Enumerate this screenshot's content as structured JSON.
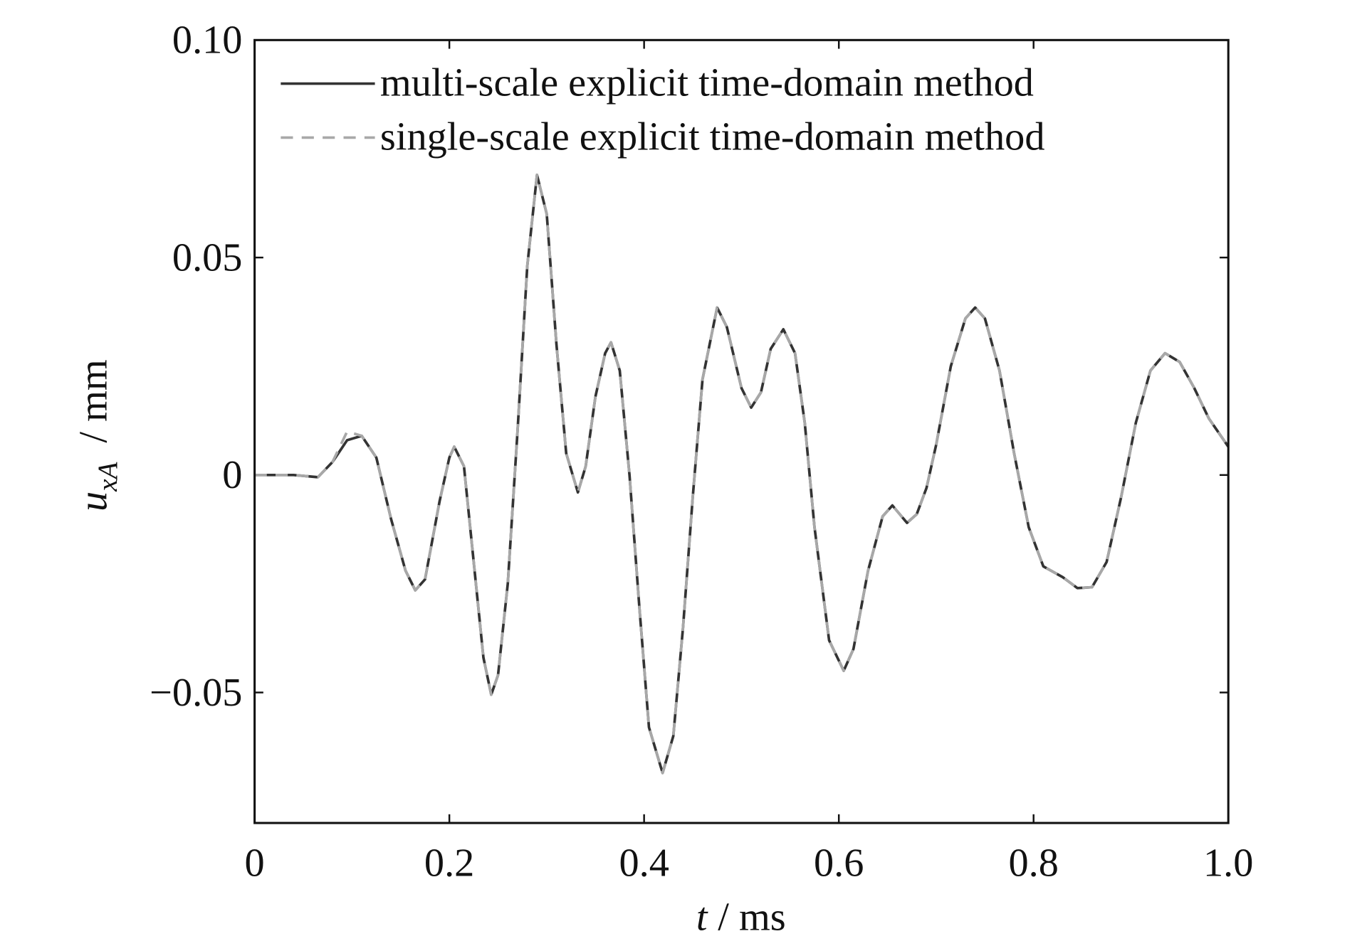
{
  "chart_data": {
    "type": "line",
    "xlabel": {
      "symbol": "t",
      "unit": "/ ms"
    },
    "ylabel": {
      "symbol": "u",
      "subscript": "xA",
      "unit": "/ mm"
    },
    "x": [
      0,
      0.04,
      0.065,
      0.08,
      0.095,
      0.11,
      0.125,
      0.14,
      0.155,
      0.165,
      0.175,
      0.19,
      0.2,
      0.205,
      0.215,
      0.225,
      0.235,
      0.243,
      0.25,
      0.26,
      0.27,
      0.28,
      0.29,
      0.3,
      0.31,
      0.32,
      0.332,
      0.34,
      0.35,
      0.36,
      0.366,
      0.375,
      0.385,
      0.395,
      0.405,
      0.419,
      0.43,
      0.44,
      0.45,
      0.46,
      0.475,
      0.485,
      0.5,
      0.51,
      0.52,
      0.53,
      0.543,
      0.555,
      0.565,
      0.575,
      0.59,
      0.605,
      0.615,
      0.63,
      0.645,
      0.655,
      0.67,
      0.68,
      0.69,
      0.7,
      0.715,
      0.73,
      0.74,
      0.75,
      0.765,
      0.78,
      0.795,
      0.81,
      0.83,
      0.845,
      0.86,
      0.875,
      0.89,
      0.905,
      0.92,
      0.935,
      0.95,
      0.965,
      0.98,
      1.0
    ],
    "series": [
      {
        "name": "multi-scale explicit time-domain method",
        "color": "#333333",
        "dash": false,
        "values": [
          0,
          0,
          -0.0005,
          0.003,
          0.008,
          0.009,
          0.004,
          -0.01,
          -0.022,
          -0.0265,
          -0.024,
          -0.006,
          0.004,
          0.0065,
          0.002,
          -0.02,
          -0.042,
          -0.0505,
          -0.046,
          -0.025,
          0.01,
          0.048,
          0.069,
          0.06,
          0.03,
          0.005,
          -0.004,
          0.002,
          0.018,
          0.028,
          0.0305,
          0.024,
          0.0,
          -0.03,
          -0.058,
          -0.0685,
          -0.06,
          -0.035,
          -0.005,
          0.022,
          0.0385,
          0.034,
          0.02,
          0.0155,
          0.019,
          0.029,
          0.0335,
          0.028,
          0.012,
          -0.012,
          -0.038,
          -0.045,
          -0.04,
          -0.022,
          -0.0095,
          -0.007,
          -0.011,
          -0.009,
          -0.003,
          0.007,
          0.025,
          0.036,
          0.0385,
          0.036,
          0.024,
          0.005,
          -0.012,
          -0.021,
          -0.0235,
          -0.026,
          -0.0258,
          -0.02,
          -0.005,
          0.012,
          0.024,
          0.028,
          0.026,
          0.02,
          0.013,
          0.0065
        ]
      },
      {
        "name": "single-scale explicit time-domain method",
        "color": "#a8a8a8",
        "dash": true,
        "values": [
          0,
          0,
          -0.0005,
          0.003,
          0.01,
          0.009,
          0.004,
          -0.01,
          -0.022,
          -0.0265,
          -0.024,
          -0.006,
          0.004,
          0.0065,
          0.002,
          -0.02,
          -0.042,
          -0.0505,
          -0.046,
          -0.025,
          0.01,
          0.048,
          0.069,
          0.06,
          0.03,
          0.005,
          -0.004,
          0.002,
          0.018,
          0.028,
          0.0305,
          0.024,
          0.0,
          -0.03,
          -0.058,
          -0.0685,
          -0.06,
          -0.035,
          -0.005,
          0.022,
          0.0385,
          0.034,
          0.02,
          0.0155,
          0.019,
          0.029,
          0.0335,
          0.028,
          0.012,
          -0.012,
          -0.038,
          -0.045,
          -0.04,
          -0.022,
          -0.0095,
          -0.007,
          -0.011,
          -0.009,
          -0.003,
          0.007,
          0.025,
          0.036,
          0.0385,
          0.036,
          0.024,
          0.005,
          -0.012,
          -0.021,
          -0.0235,
          -0.026,
          -0.0258,
          -0.02,
          -0.005,
          0.012,
          0.024,
          0.028,
          0.026,
          0.02,
          0.013,
          0.0065
        ]
      }
    ],
    "xlim": [
      0,
      1
    ],
    "xticks": [
      0,
      0.2,
      0.4,
      0.6,
      0.8,
      {
        "value": 1,
        "label": "1.0"
      }
    ],
    "ylim": [
      -0.08,
      0.1
    ],
    "yticks": [
      {
        "value": -0.05,
        "label": "−0.05"
      },
      0,
      0.05,
      {
        "value": 0.1,
        "label": "0.10"
      }
    ],
    "legend": "upper left"
  }
}
